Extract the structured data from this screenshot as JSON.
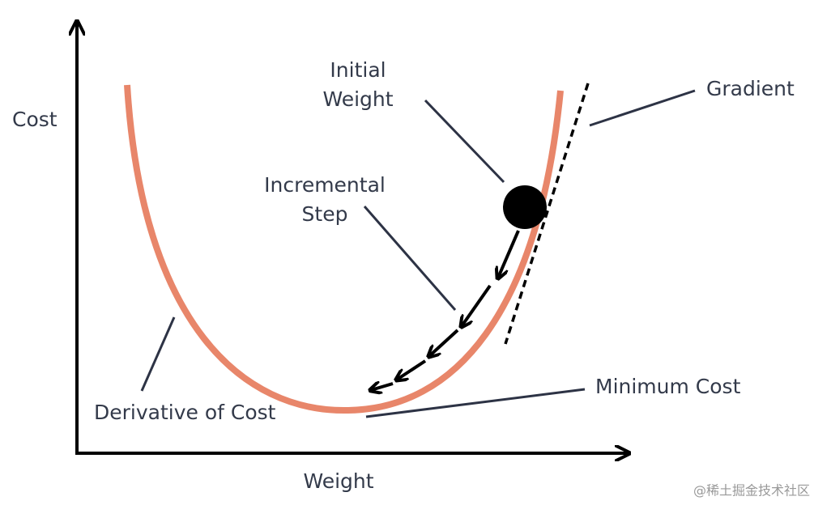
{
  "axes": {
    "y_label": "Cost",
    "x_label": "Weight"
  },
  "labels": {
    "initial_weight": [
      "Initial",
      "Weight"
    ],
    "incremental_step": [
      "Incremental",
      "Step"
    ],
    "gradient": "Gradient",
    "derivative": "Derivative of Cost",
    "minimum_cost": "Minimum Cost"
  },
  "watermark": "@稀土掘金技术社区"
}
